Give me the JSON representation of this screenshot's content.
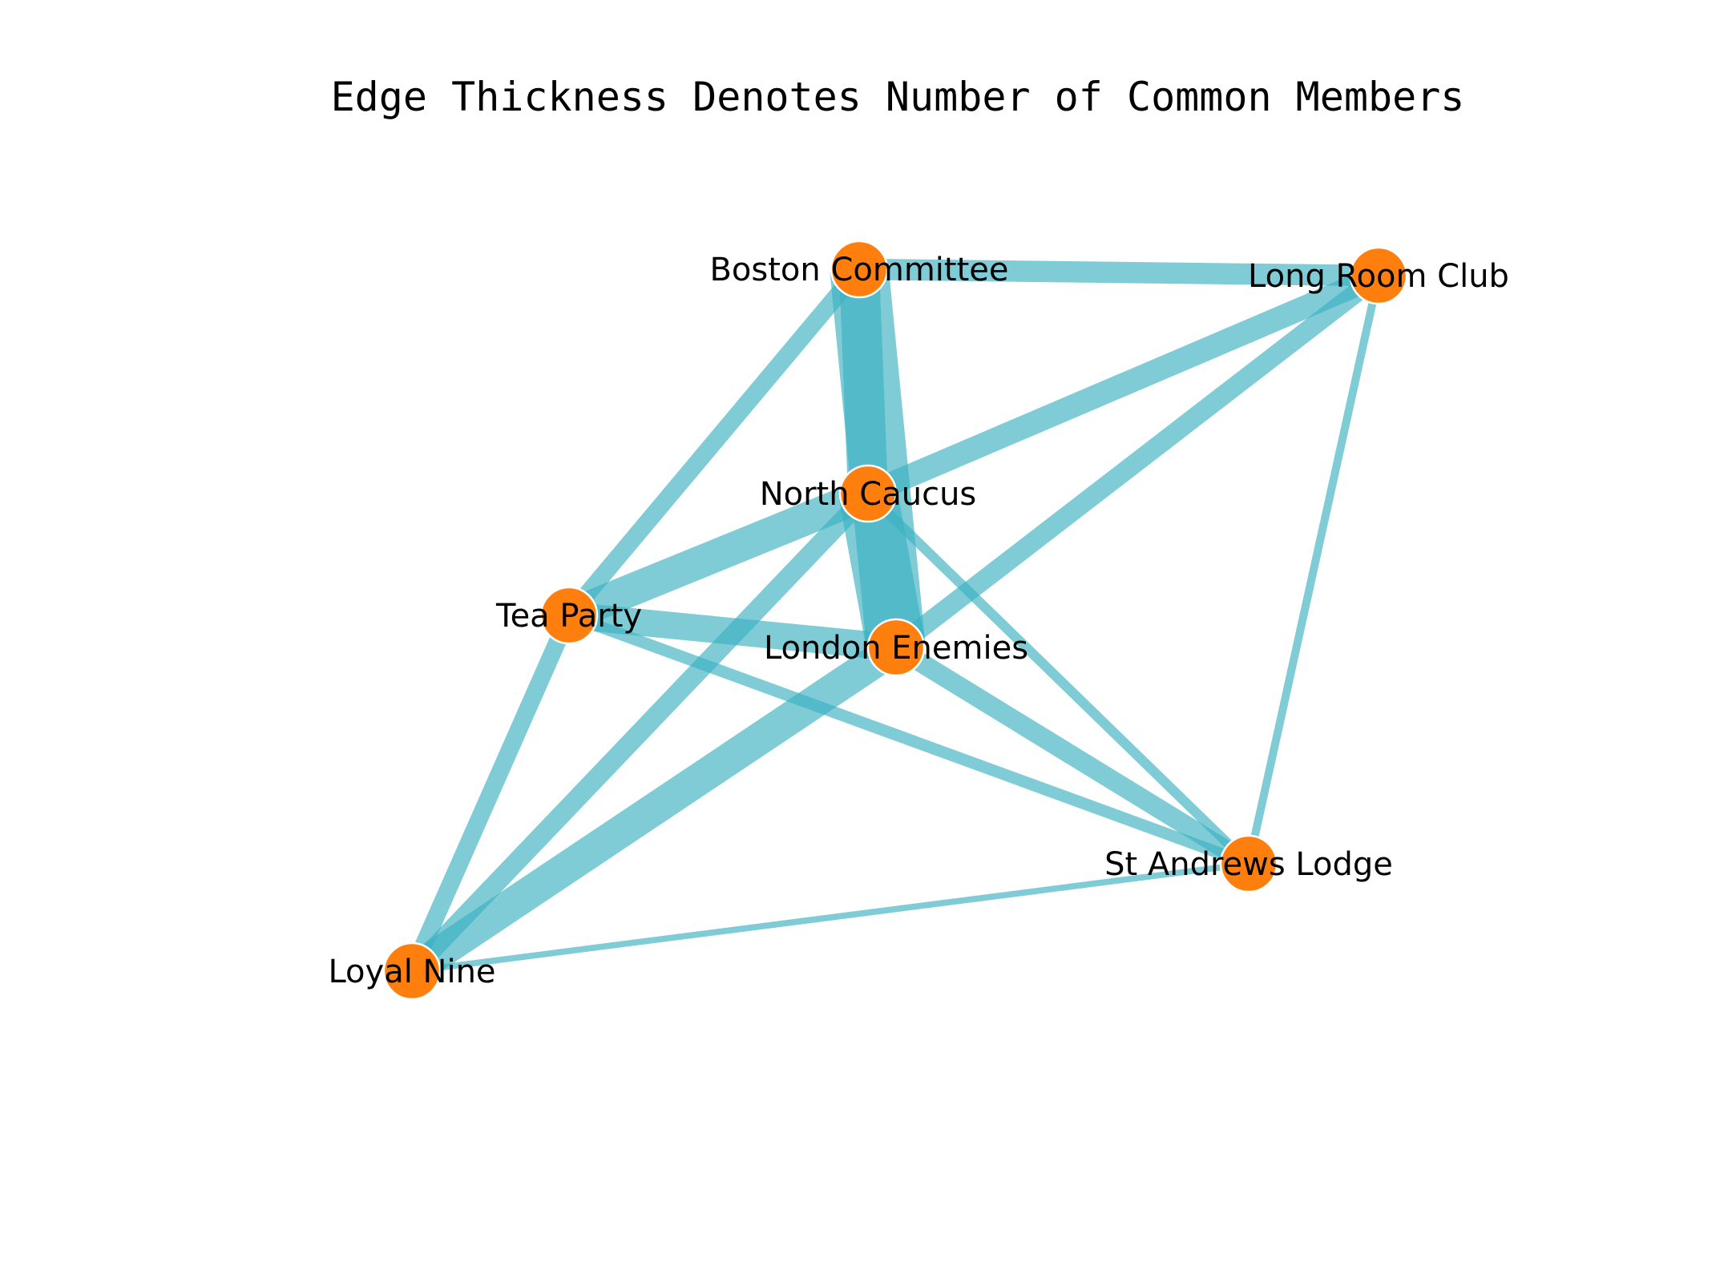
{
  "title": "Edge Thickness Denotes Number of Common Members",
  "colors": {
    "node": "#ff7f0e",
    "edge": "#3bb0c2",
    "background": "#ffffff"
  },
  "chart_data": {
    "type": "network",
    "nodes": [
      {
        "id": "boston",
        "label": "Boston Committee"
      },
      {
        "id": "longroom",
        "label": "Long Room Club"
      },
      {
        "id": "north",
        "label": "North Caucus"
      },
      {
        "id": "tea",
        "label": "Tea Party"
      },
      {
        "id": "london",
        "label": "London Enemies"
      },
      {
        "id": "standrews",
        "label": "St Andrews Lodge"
      },
      {
        "id": "loyal",
        "label": "Loyal Nine"
      }
    ],
    "edges": [
      {
        "source": "boston",
        "target": "london",
        "weight": 30
      },
      {
        "source": "north",
        "target": "london",
        "weight": 30
      },
      {
        "source": "boston",
        "target": "north",
        "weight": 20
      },
      {
        "source": "london",
        "target": "loyal",
        "weight": 16
      },
      {
        "source": "north",
        "target": "tea",
        "weight": 16
      },
      {
        "source": "tea",
        "target": "london",
        "weight": 13
      },
      {
        "source": "north",
        "target": "longroom",
        "weight": 11
      },
      {
        "source": "boston",
        "target": "longroom",
        "weight": 10
      },
      {
        "source": "london",
        "target": "standrews",
        "weight": 9
      },
      {
        "source": "longroom",
        "target": "london",
        "weight": 9
      },
      {
        "source": "north",
        "target": "loyal",
        "weight": 9
      },
      {
        "source": "boston",
        "target": "tea",
        "weight": 8
      },
      {
        "source": "tea",
        "target": "loyal",
        "weight": 8
      },
      {
        "source": "tea",
        "target": "standrews",
        "weight": 5
      },
      {
        "source": "north",
        "target": "standrews",
        "weight": 4
      },
      {
        "source": "longroom",
        "target": "standrews",
        "weight": 3
      },
      {
        "source": "loyal",
        "target": "standrews",
        "weight": 2
      }
    ]
  }
}
